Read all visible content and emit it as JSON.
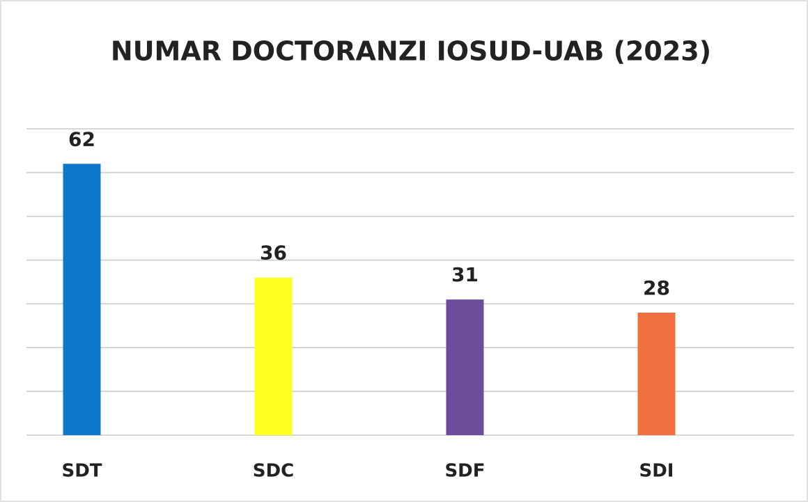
{
  "chart_data": {
    "type": "bar",
    "title": "NUMAR DOCTORANZI IOSUD-UAB (2023)",
    "categories": [
      "SDT",
      "SDC",
      "SDF",
      "SDI"
    ],
    "values": [
      62,
      36,
      31,
      28
    ],
    "colors": [
      "#0b78c9",
      "#ffff1f",
      "#6b4d9a",
      "#ef6f3f"
    ],
    "ylim": [
      0,
      70
    ],
    "yticks": [
      0,
      10,
      20,
      30,
      40,
      50,
      60,
      70
    ],
    "grid": true
  }
}
